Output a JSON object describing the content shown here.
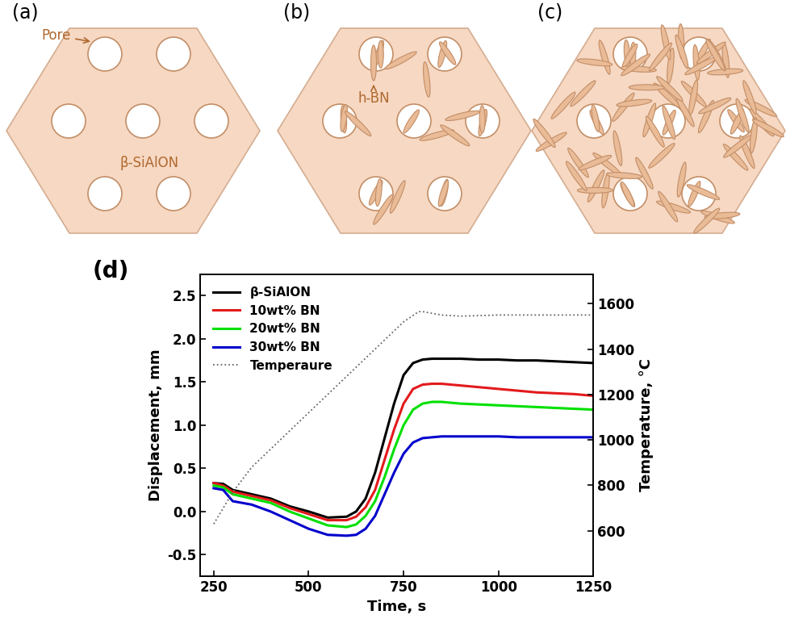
{
  "diagram": {
    "panels": [
      {
        "label": "(a)",
        "pore_label": "Pore",
        "matrix_label": "β-SiAlON"
      },
      {
        "label": "(b)",
        "platelet_label": "h-BN"
      },
      {
        "label": "(c)"
      }
    ]
  },
  "chart_data": {
    "type": "line",
    "annotations": [
      "(d)"
    ],
    "x_label": "Time, s",
    "y_label": "Displacement, mm",
    "y2_label": "Temperature, °C",
    "x": [
      250,
      275,
      300,
      350,
      400,
      450,
      500,
      550,
      600,
      625,
      650,
      675,
      700,
      725,
      750,
      775,
      800,
      825,
      850,
      900,
      950,
      1000,
      1050,
      1100,
      1150,
      1200,
      1250
    ],
    "xlim": [
      215,
      1250
    ],
    "xticks": [
      250,
      500,
      750,
      1000,
      1250
    ],
    "ylim": [
      -0.75,
      2.75
    ],
    "yticks": [
      -0.5,
      0.0,
      0.5,
      1.0,
      1.5,
      2.0,
      2.5
    ],
    "y2lim": [
      400,
      1730
    ],
    "y2ticks": [
      600,
      800,
      1000,
      1200,
      1400,
      1600
    ],
    "legend": "upper left",
    "series": [
      {
        "name": "β-SiAlON",
        "color": "#000000",
        "line_style": "solid",
        "values": [
          0.33,
          0.32,
          0.25,
          0.2,
          0.15,
          0.06,
          0.0,
          -0.07,
          -0.06,
          0.0,
          0.15,
          0.45,
          0.85,
          1.25,
          1.58,
          1.72,
          1.76,
          1.77,
          1.77,
          1.77,
          1.76,
          1.76,
          1.75,
          1.75,
          1.74,
          1.73,
          1.72
        ]
      },
      {
        "name": "10wt% BN",
        "color": "#e31a1c",
        "line_style": "solid",
        "values": [
          0.33,
          0.3,
          0.23,
          0.18,
          0.13,
          0.04,
          -0.03,
          -0.1,
          -0.1,
          -0.06,
          0.05,
          0.25,
          0.6,
          0.95,
          1.25,
          1.42,
          1.47,
          1.48,
          1.48,
          1.46,
          1.44,
          1.42,
          1.4,
          1.38,
          1.37,
          1.36,
          1.34
        ]
      },
      {
        "name": "20wt% BN",
        "color": "#00e000",
        "line_style": "solid",
        "values": [
          0.3,
          0.28,
          0.2,
          0.15,
          0.1,
          0.0,
          -0.08,
          -0.16,
          -0.18,
          -0.15,
          -0.05,
          0.12,
          0.4,
          0.72,
          1.0,
          1.18,
          1.25,
          1.27,
          1.27,
          1.25,
          1.24,
          1.23,
          1.22,
          1.21,
          1.2,
          1.19,
          1.18
        ]
      },
      {
        "name": "30wt% BN",
        "color": "#0000cc",
        "line_style": "solid",
        "values": [
          0.27,
          0.25,
          0.12,
          0.08,
          0.0,
          -0.1,
          -0.2,
          -0.27,
          -0.28,
          -0.27,
          -0.2,
          -0.05,
          0.2,
          0.45,
          0.67,
          0.8,
          0.85,
          0.86,
          0.87,
          0.87,
          0.87,
          0.87,
          0.86,
          0.86,
          0.86,
          0.86,
          0.86
        ]
      },
      {
        "name": "Temperaure",
        "color": "#666666",
        "line_style": "dotted",
        "axis": "y2",
        "x": [
          250,
          300,
          350,
          400,
          450,
          500,
          550,
          600,
          650,
          700,
          750,
          790,
          800,
          850,
          900,
          1000,
          1250
        ],
        "values": [
          630,
          770,
          880,
          960,
          1040,
          1120,
          1200,
          1280,
          1360,
          1440,
          1520,
          1565,
          1565,
          1550,
          1545,
          1550,
          1550
        ]
      }
    ]
  }
}
